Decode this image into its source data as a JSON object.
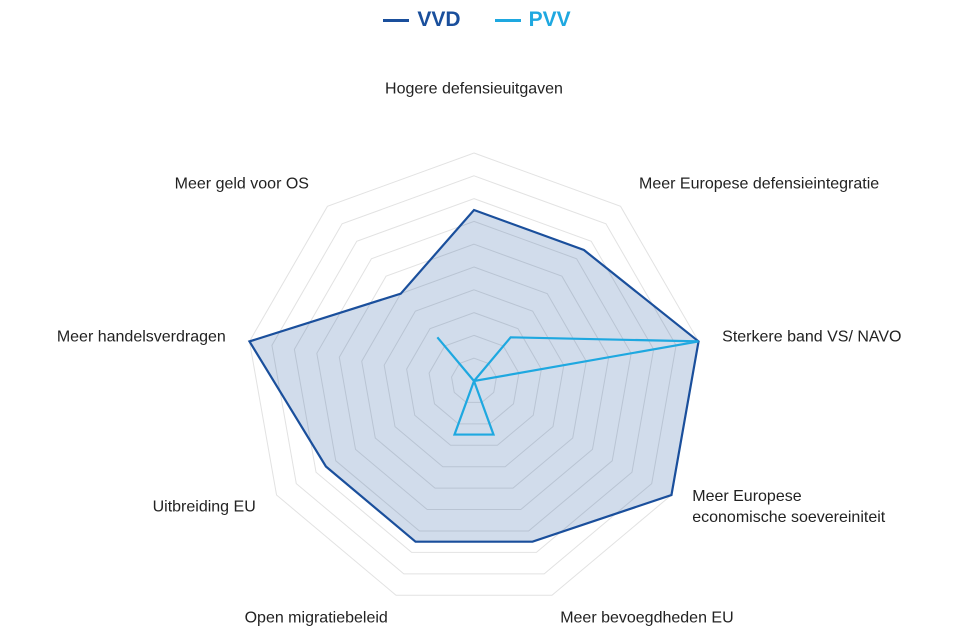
{
  "chart_data": {
    "type": "radar",
    "categories": [
      "Hogere defensieuitgaven",
      "Meer Europese defensieintegratie",
      "Sterkere band VS/ NAVO",
      "Meer Europese\neconomische soevereiniteit",
      "Meer bevoegdheden EU",
      "Open migratiebeleid",
      "Uitbreiding EU",
      "Meer handelsverdragen",
      "Meer geld voor OS"
    ],
    "series": [
      {
        "name": "VVD",
        "color": "#1a4f9c",
        "values": [
          7.5,
          7.5,
          10,
          10,
          7.5,
          7.5,
          7.5,
          10,
          5
        ]
      },
      {
        "name": "PVV",
        "color": "#1ea8e0",
        "values": [
          0,
          2.5,
          10,
          0,
          2.5,
          2.5,
          0,
          0,
          2.5
        ]
      }
    ],
    "rlim": [
      0,
      10
    ],
    "rticks": [
      1,
      2,
      3,
      4,
      5,
      6,
      7,
      8,
      9,
      10
    ],
    "grid": true,
    "legend": "top"
  }
}
